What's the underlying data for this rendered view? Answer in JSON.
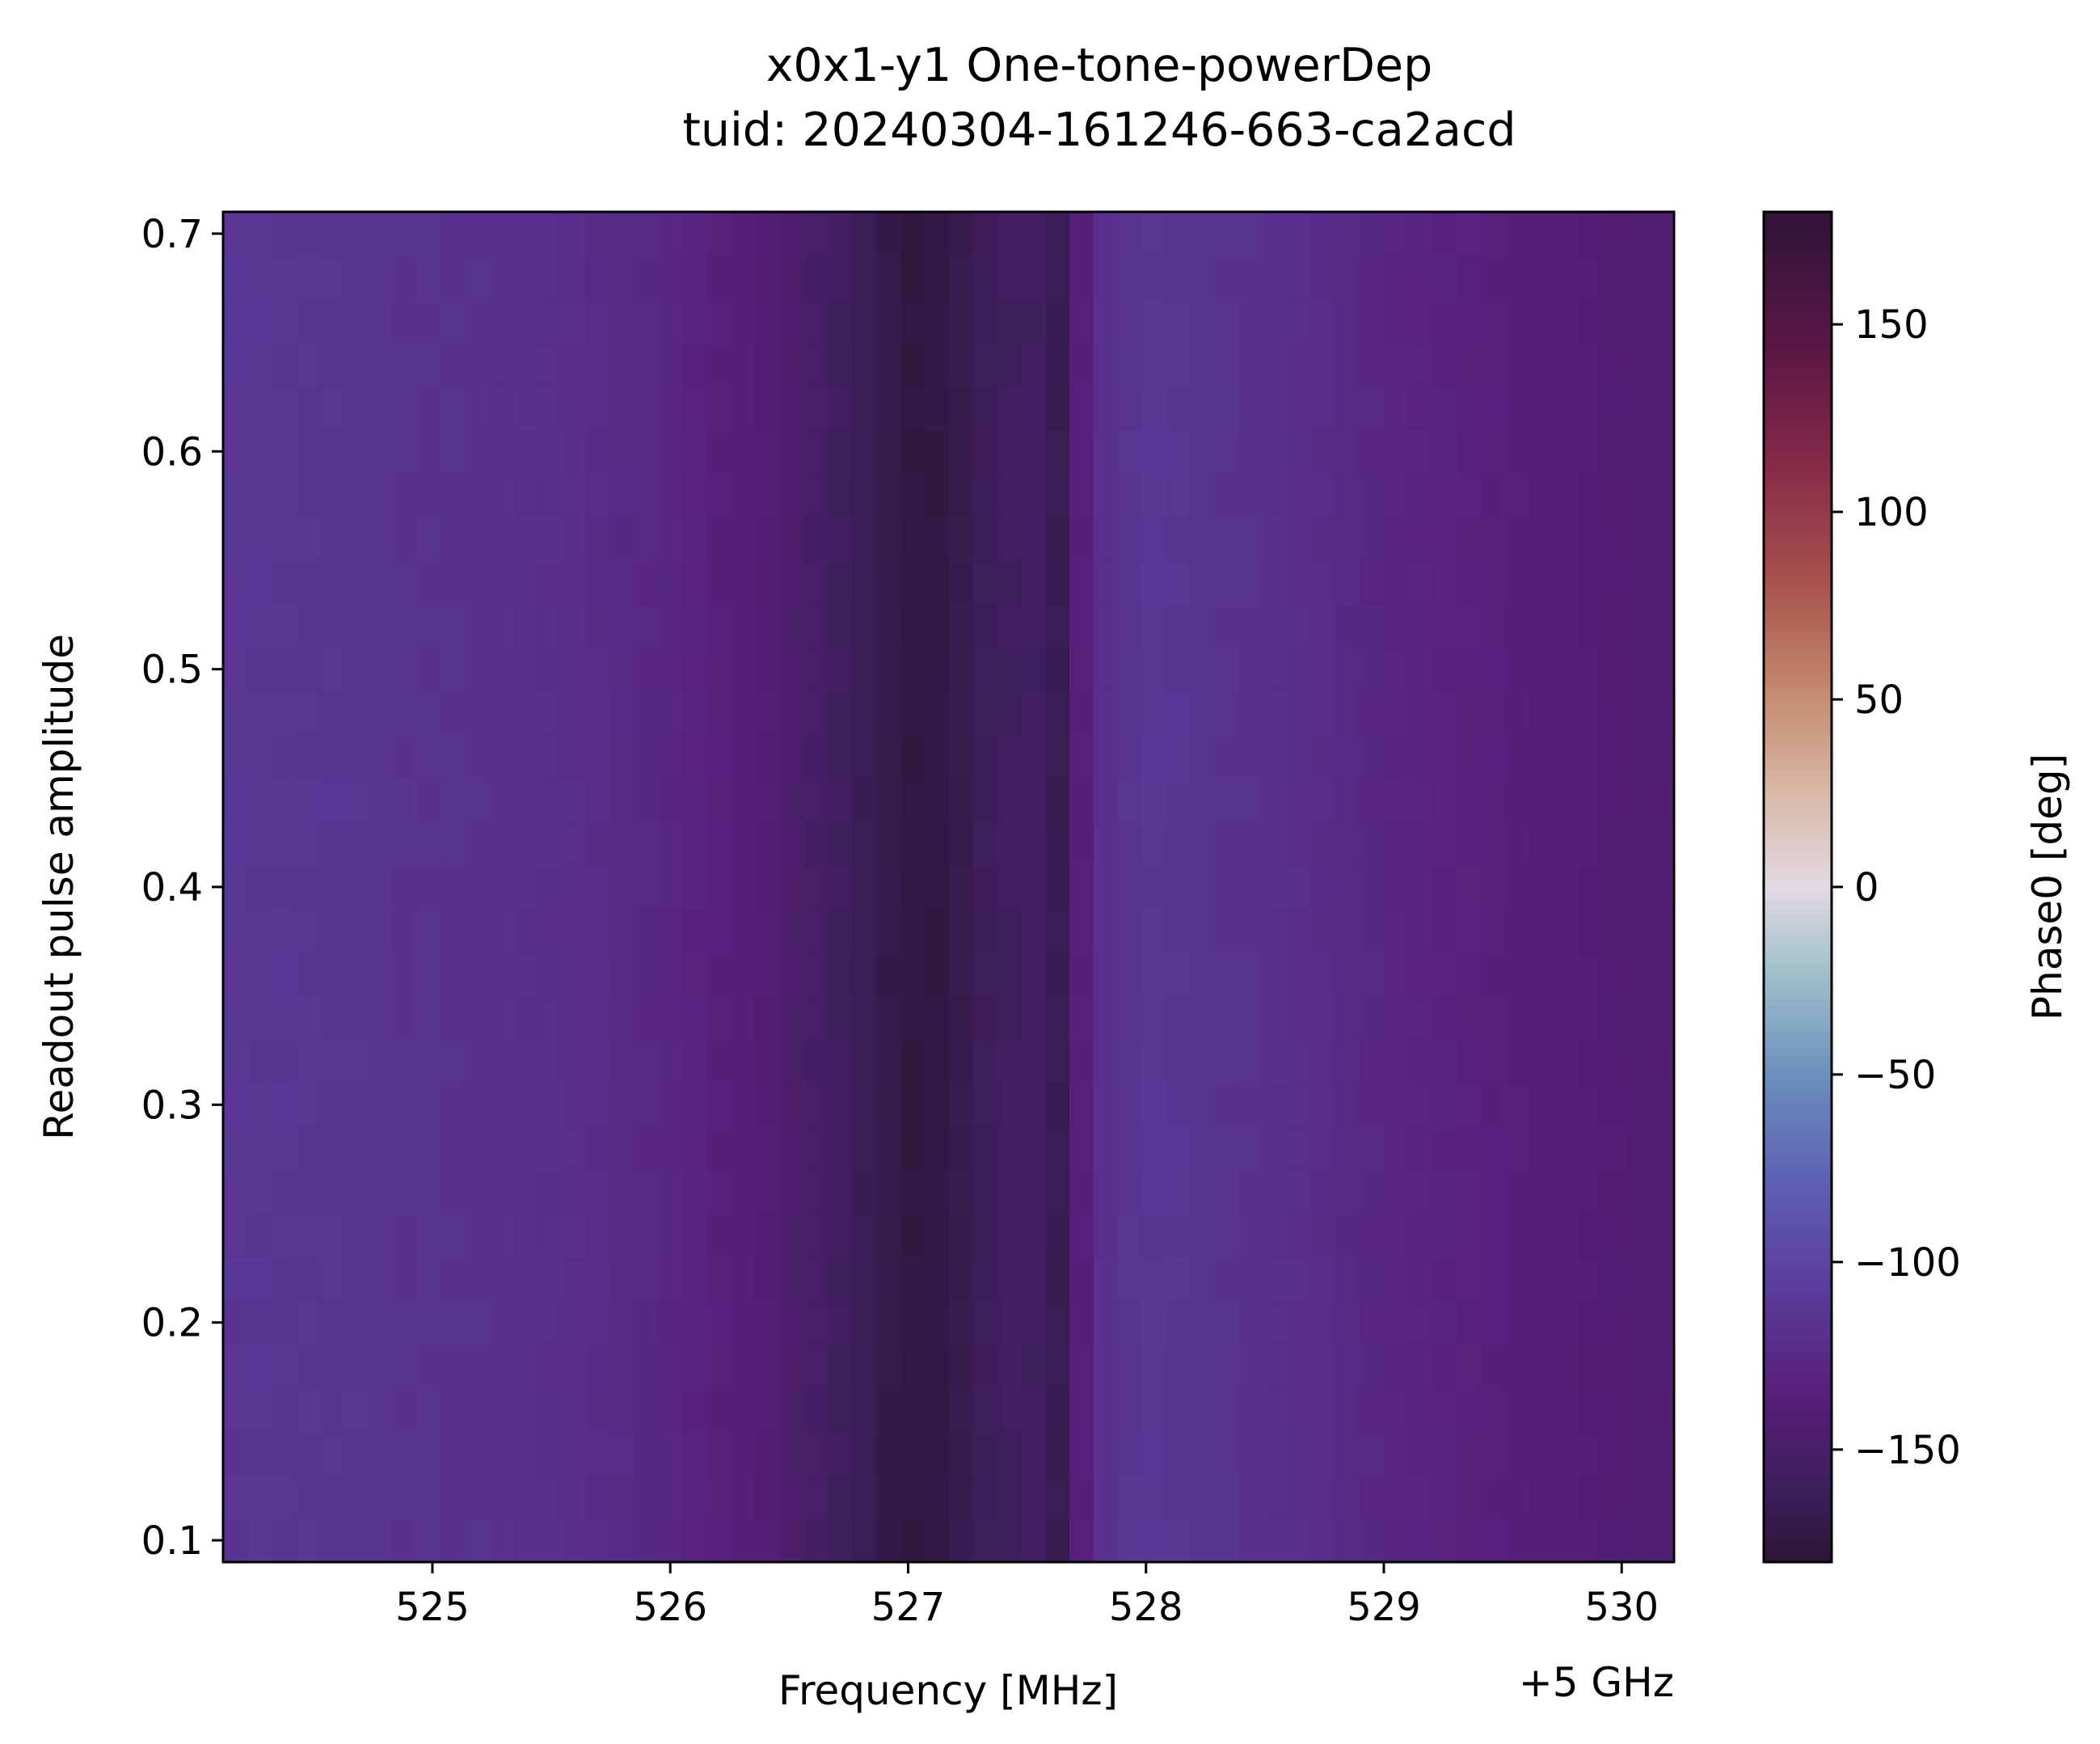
{
  "chart_data": {
    "type": "heatmap",
    "title_lines": [
      "x0x1-y1 One-tone-powerDep",
      "tuid: 20240304-161246-663-ca2acd"
    ],
    "xlabel": "Frequency [MHz]",
    "x_offset_label": "+5 GHz",
    "ylabel": "Readout pulse amplitude",
    "colorbar_label": "Phase0 [deg]",
    "colormap": "twilight_shifted",
    "x_range": [
      524.12,
      530.22
    ],
    "y_range": [
      0.09,
      0.71
    ],
    "color_range": [
      -180,
      180
    ],
    "x_ticks": [
      525,
      526,
      527,
      528,
      529,
      530
    ],
    "x_tick_labels": [
      "525",
      "526",
      "527",
      "528",
      "529",
      "530"
    ],
    "y_ticks": [
      0.1,
      0.2,
      0.3,
      0.4,
      0.5,
      0.6,
      0.7
    ],
    "y_tick_labels": [
      "0.1",
      "0.2",
      "0.3",
      "0.4",
      "0.5",
      "0.6",
      "0.7"
    ],
    "colorbar_ticks": [
      150,
      100,
      50,
      0,
      -50,
      -100,
      -150
    ],
    "colorbar_tick_labels": [
      "150",
      "100",
      "50",
      "0",
      "−50",
      "−100",
      "−150"
    ],
    "frequency_start": 524.12,
    "frequency_stop": 530.22,
    "frequency_points": 60,
    "amplitude_start": 0.09,
    "amplitude_stop": 0.71,
    "amplitude_points": 31,
    "phase_profile_freq": [
      524.12,
      525.0,
      525.5,
      526.0,
      526.4,
      526.65,
      526.9,
      527.05,
      527.15,
      527.3,
      527.5,
      527.6,
      527.67,
      527.75,
      528.0,
      528.5,
      529.0,
      529.5,
      530.0,
      530.22
    ],
    "phase_profile_deg": [
      -112,
      -116,
      -120,
      -128,
      -140,
      -155,
      -168,
      -175,
      -172,
      -162,
      -155,
      -162,
      -170,
      -122,
      -112,
      -118,
      -128,
      -135,
      -142,
      -144
    ]
  }
}
